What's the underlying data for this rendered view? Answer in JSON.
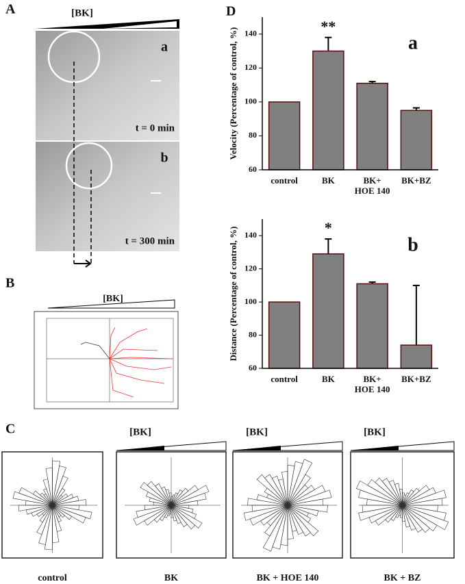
{
  "panel_labels": [
    "A",
    "B",
    "C",
    "D"
  ],
  "panel_a": {
    "gradient_label": "[BK]",
    "frame_labels": [
      "a",
      "b"
    ],
    "times": [
      "t = 0 min",
      "t = 300 min"
    ]
  },
  "panel_b": {
    "gradient_label": "[BK]"
  },
  "panel_c": {
    "gradient_labels": [
      "[BK]",
      "[BK]",
      "[BK]"
    ],
    "conditions": [
      "control",
      "BK",
      "BK + HOE 140",
      "BK + BZ"
    ]
  },
  "chart_data": [
    {
      "type": "bar",
      "subplot_label": "a",
      "ylabel": "Velocity (Percentage of control, %)",
      "categories": [
        "control",
        "BK",
        "BK+\nHOE 140",
        "BK+BZ"
      ],
      "values": [
        100,
        130,
        111,
        95
      ],
      "errors": [
        0,
        8,
        1,
        1.5
      ],
      "significance": [
        {
          "index": 1,
          "label": "**"
        }
      ],
      "color": "#808080",
      "edgecolor": "#5a0a0a",
      "ylim": [
        60,
        150
      ],
      "yticks": [
        60,
        80,
        100,
        120,
        140
      ]
    },
    {
      "type": "bar",
      "subplot_label": "b",
      "ylabel": "Distance (Percentage of control, %)",
      "categories": [
        "control",
        "BK",
        "BK+\nHOE 140",
        "BK+BZ"
      ],
      "values": [
        100,
        129,
        111,
        74
      ],
      "errors": [
        0,
        9,
        1,
        36
      ],
      "significance": [
        {
          "index": 1,
          "label": "*"
        }
      ],
      "color": "#808080",
      "edgecolor": "#5a0a0a",
      "ylim": [
        60,
        150
      ],
      "yticks": [
        60,
        80,
        100,
        120,
        140
      ]
    }
  ]
}
